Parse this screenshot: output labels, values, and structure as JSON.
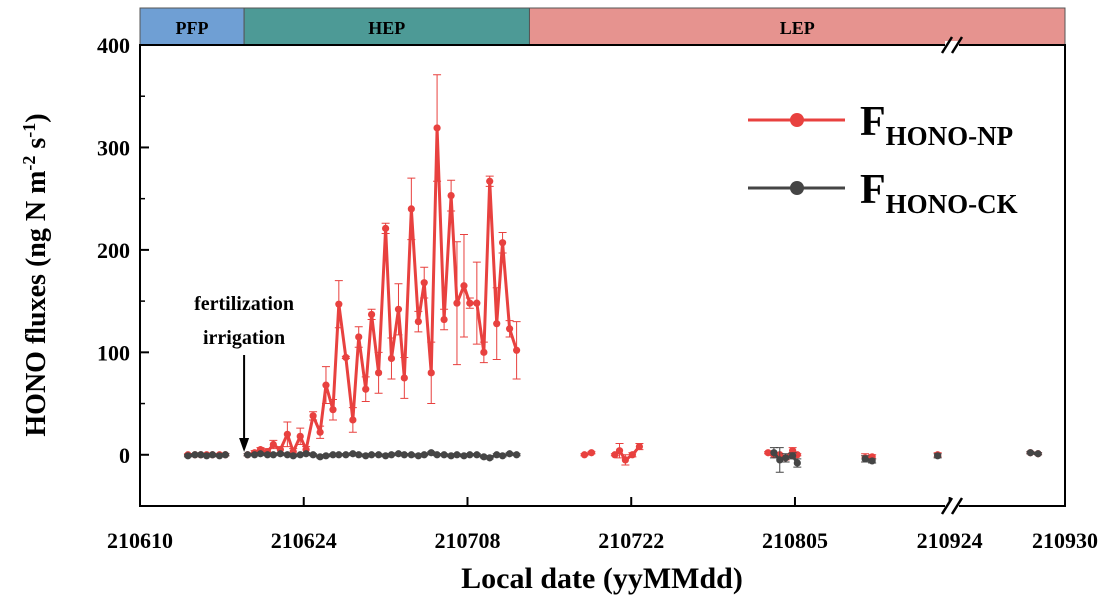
{
  "chart_data": {
    "type": "line",
    "ylabel": [
      "HONO fluxes (ng N m",
      "-2",
      " s",
      "-1",
      ")"
    ],
    "xlabel": "Local date (yyMMdd)",
    "ylim": [
      -50,
      400
    ],
    "yticks": [
      0,
      100,
      200,
      300,
      400
    ],
    "yminorticks": [
      50,
      150,
      250,
      350
    ],
    "xsegments": [
      [
        0,
        68.4
      ],
      [
        105.5,
        112
      ]
    ],
    "xticks": [
      {
        "value": 0,
        "label": "210610"
      },
      {
        "value": 14,
        "label": "210624"
      },
      {
        "value": 28,
        "label": "210708"
      },
      {
        "value": 42,
        "label": "210722"
      },
      {
        "value": 56,
        "label": "210805"
      },
      {
        "value": 106,
        "label": "210924"
      },
      {
        "value": 112,
        "label": "210930"
      }
    ],
    "phases": [
      {
        "label": "PFP",
        "start": 0,
        "end": 8.9,
        "color": "#6f9fd4"
      },
      {
        "label": "HEP",
        "start": 8.9,
        "end": 33.3,
        "color": "#4d9a96"
      },
      {
        "label": "LEP",
        "start": 33.3,
        "end": 112,
        "color": "#e6938f"
      }
    ],
    "annotation": {
      "lines": [
        "fertilization",
        "irrigation"
      ],
      "x": 8.9
    },
    "legend": "top-right",
    "series": [
      {
        "name": "F",
        "subscript": "HONO-NP",
        "color": "#e8413f",
        "x": [
          4.1,
          4.7,
          5.2,
          5.7,
          6.2,
          6.8,
          7.3,
          null,
          9.2,
          9.8,
          10.3,
          10.9,
          11.4,
          12.0,
          12.6,
          13.1,
          13.7,
          14.2,
          14.8,
          15.4,
          15.9,
          16.5,
          17.0,
          17.6,
          18.2,
          18.7,
          19.3,
          19.8,
          20.4,
          21.0,
          21.5,
          22.1,
          22.6,
          23.2,
          23.8,
          24.3,
          24.9,
          25.4,
          26.0,
          26.6,
          27.1,
          27.7,
          28.2,
          28.8,
          29.4,
          29.9,
          30.5,
          31.0,
          31.6,
          32.2,
          null,
          38.0,
          38.6,
          null,
          40.6,
          41.0,
          41.5,
          42.1,
          42.7,
          null,
          53.7,
          54.2,
          54.7,
          55.2,
          55.8,
          56.2,
          null,
          62.0,
          62.6,
          null,
          68.2,
          null,
          110.2,
          110.6
        ],
        "values": [
          0,
          0,
          0,
          0,
          0,
          0,
          0,
          null,
          0,
          2,
          5,
          3,
          10,
          5,
          20,
          3,
          18,
          5,
          38,
          22,
          68,
          44,
          147,
          95,
          34,
          115,
          64,
          137,
          80,
          221,
          94,
          142,
          75,
          240,
          130,
          168,
          80,
          319,
          132,
          253,
          148,
          165,
          148,
          148,
          100,
          267,
          128,
          207,
          123,
          102,
          null,
          0,
          2,
          null,
          0,
          4,
          -5,
          0,
          8,
          null,
          2,
          0,
          0,
          -3,
          4,
          0,
          null,
          -3,
          -2,
          null,
          0,
          null,
          2,
          1
        ],
        "errors": [
          1,
          1,
          1,
          1,
          1,
          1,
          1,
          null,
          1,
          2,
          2,
          3,
          4,
          3,
          12,
          3,
          8,
          3,
          4,
          6,
          18,
          10,
          23,
          1,
          12,
          10,
          12,
          5,
          20,
          5,
          20,
          25,
          20,
          30,
          10,
          15,
          30,
          52,
          10,
          15,
          60,
          50,
          5,
          40,
          10,
          5,
          35,
          10,
          8,
          28,
          null,
          1,
          1,
          null,
          1,
          7,
          5,
          2,
          3,
          null,
          1,
          1,
          1,
          2,
          3,
          1,
          null,
          4,
          2,
          null,
          2,
          null,
          1,
          1
        ]
      },
      {
        "name": "F",
        "subscript": "HONO-CK",
        "color": "#454545",
        "x": [
          4.1,
          4.7,
          5.2,
          5.7,
          6.2,
          6.8,
          7.3,
          null,
          9.2,
          9.8,
          10.3,
          10.9,
          11.4,
          12.0,
          12.6,
          13.1,
          13.7,
          14.2,
          14.8,
          15.4,
          15.9,
          16.5,
          17.0,
          17.6,
          18.2,
          18.7,
          19.3,
          19.8,
          20.4,
          21.0,
          21.5,
          22.1,
          22.6,
          23.2,
          23.8,
          24.3,
          24.9,
          25.4,
          26.0,
          26.6,
          27.1,
          27.7,
          28.2,
          28.8,
          29.4,
          29.9,
          30.5,
          31.0,
          31.6,
          32.2,
          null,
          54.2,
          54.7,
          55.2,
          55.8,
          56.2,
          null,
          62.0,
          62.6,
          null,
          68.2,
          null,
          110.2,
          110.6
        ],
        "values": [
          -1,
          0,
          0,
          -1,
          0,
          -1,
          0,
          null,
          0,
          0,
          1,
          0,
          0,
          1,
          0,
          -1,
          0,
          1,
          0,
          -2,
          -1,
          0,
          0,
          0,
          1,
          0,
          -1,
          0,
          0,
          -1,
          0,
          1,
          0,
          0,
          -1,
          0,
          2,
          0,
          0,
          -1,
          0,
          -1,
          0,
          0,
          -2,
          -3,
          0,
          -1,
          1,
          0,
          null,
          2,
          -5,
          -3,
          -1,
          -8,
          null,
          -4,
          -6,
          null,
          -1,
          null,
          2,
          1
        ],
        "errors": [
          1,
          1,
          1,
          1,
          1,
          1,
          1,
          null,
          1,
          1,
          1,
          1,
          1,
          1,
          1,
          1,
          1,
          1,
          1,
          1,
          1,
          1,
          1,
          1,
          1,
          1,
          1,
          1,
          1,
          1,
          1,
          1,
          1,
          1,
          1,
          1,
          1,
          1,
          1,
          1,
          1,
          1,
          1,
          1,
          1,
          1,
          1,
          1,
          1,
          1,
          null,
          5,
          12,
          4,
          3,
          4,
          null,
          3,
          2,
          null,
          2,
          null,
          1,
          1
        ]
      }
    ]
  }
}
